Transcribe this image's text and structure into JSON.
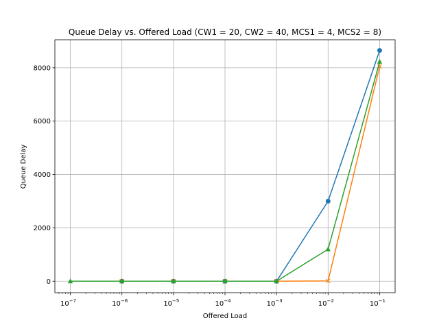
{
  "chart_data": {
    "type": "line",
    "title": "Queue Delay vs. Offered Load (CW1 = 20, CW2 = 40, MCS1 = 4, MCS2 = 8)",
    "xlabel": "Offered Load",
    "ylabel": "Queue Delay",
    "x_scale": "log",
    "x": [
      1e-07,
      1e-06,
      1e-05,
      0.0001,
      0.001,
      0.01,
      0.1
    ],
    "x_tick_base": "10",
    "x_tick_exponents": [
      "−7",
      "−6",
      "−5",
      "−4",
      "−3",
      "−2",
      "−1"
    ],
    "y_ticks": [
      0,
      2000,
      4000,
      6000,
      8000
    ],
    "y_tick_labels": [
      "0",
      "2000",
      "4000",
      "6000",
      "8000"
    ],
    "ylim": [
      -430,
      9050
    ],
    "grid": true,
    "legend": "none",
    "series": [
      {
        "color": "#1f77b4",
        "marker": "circle",
        "values": [
          null,
          0,
          0,
          0,
          0,
          3000,
          8650
        ]
      },
      {
        "color": "#ff7f0e",
        "marker": "x",
        "values": [
          null,
          0,
          0,
          0,
          0,
          10,
          8050
        ]
      },
      {
        "color": "#2ca02c",
        "marker": "triangle",
        "values": [
          0,
          0,
          0,
          0,
          0,
          1200,
          8230
        ]
      }
    ]
  }
}
